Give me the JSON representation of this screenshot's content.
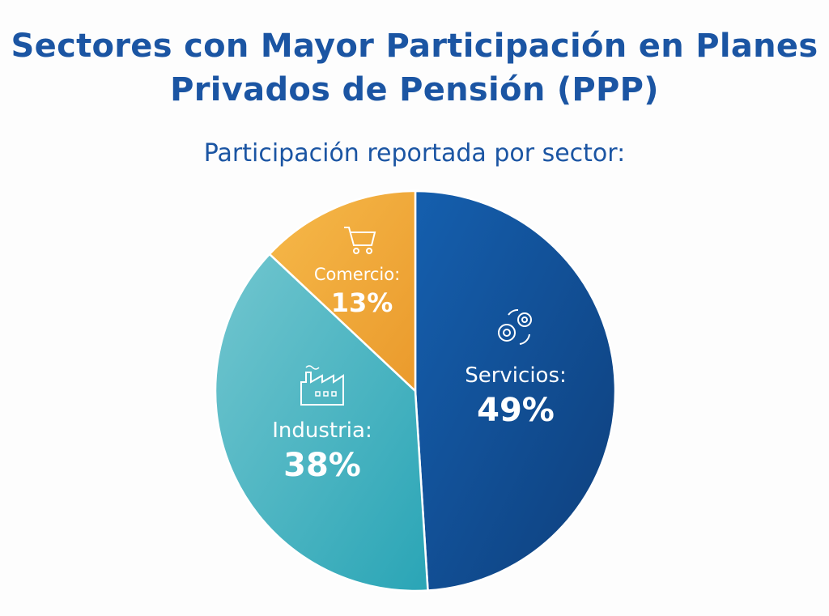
{
  "chart_data": {
    "type": "pie",
    "title": "Sectores con Mayor Participación en Planes Privados de Pensión (PPP)",
    "subtitle": "Participación reportada por sector:",
    "slices": [
      {
        "name": "Servicios",
        "label": "Servicios:",
        "value": 49,
        "value_label": "49%",
        "color": "#155fae",
        "color2": "#0e3f7c",
        "icon": "gears-icon"
      },
      {
        "name": "Industria",
        "label": "Industria:",
        "value": 38,
        "value_label": "38%",
        "color": "#72c6cf",
        "color2": "#2aa5b6",
        "icon": "factory-icon"
      },
      {
        "name": "Comercio",
        "label": "Comercio:",
        "value": 13,
        "value_label": "13%",
        "color": "#f6b94a",
        "color2": "#ea9a2c",
        "icon": "shopping-cart-icon"
      }
    ],
    "start_angle": "top",
    "direction": "clockwise"
  }
}
